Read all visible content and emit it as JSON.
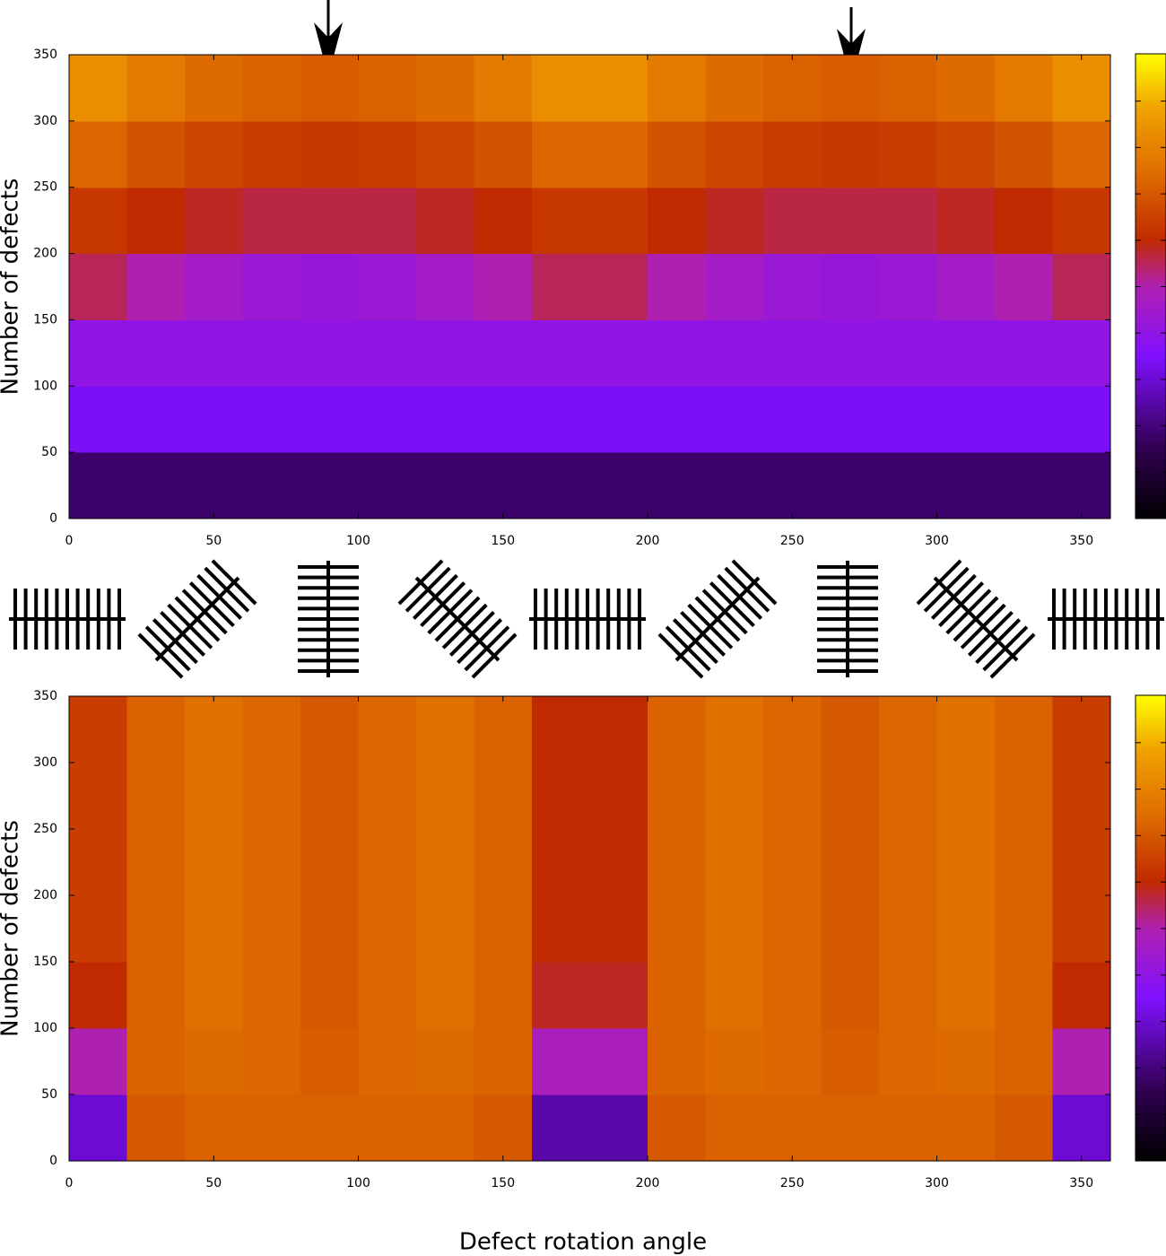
{
  "chart_data": [
    {
      "type": "heatmap",
      "ylabel": "Number of defects",
      "x": [
        10,
        30,
        50,
        70,
        90,
        110,
        130,
        150,
        170,
        190,
        210,
        230,
        250,
        270,
        290,
        310,
        330,
        350
      ],
      "y": [
        25,
        75,
        125,
        175,
        225,
        275,
        325
      ],
      "values": [
        [
          0.18,
          0.18,
          0.18,
          0.18,
          0.18,
          0.18,
          0.18,
          0.18,
          0.18,
          0.18,
          0.18,
          0.18,
          0.18,
          0.18,
          0.18,
          0.18,
          0.18,
          0.18
        ],
        [
          0.34,
          0.34,
          0.34,
          0.34,
          0.34,
          0.34,
          0.34,
          0.34,
          0.34,
          0.34,
          0.34,
          0.34,
          0.34,
          0.34,
          0.34,
          0.34,
          0.34,
          0.34
        ],
        [
          0.4,
          0.4,
          0.4,
          0.4,
          0.4,
          0.4,
          0.4,
          0.4,
          0.4,
          0.4,
          0.4,
          0.4,
          0.4,
          0.4,
          0.4,
          0.4,
          0.4,
          0.4
        ],
        [
          0.55,
          0.5,
          0.46,
          0.43,
          0.42,
          0.43,
          0.46,
          0.5,
          0.55,
          0.55,
          0.5,
          0.46,
          0.43,
          0.42,
          0.43,
          0.46,
          0.5,
          0.55
        ],
        [
          0.63,
          0.6,
          0.58,
          0.56,
          0.56,
          0.56,
          0.58,
          0.6,
          0.63,
          0.63,
          0.6,
          0.58,
          0.56,
          0.56,
          0.56,
          0.58,
          0.6,
          0.63
        ],
        [
          0.73,
          0.69,
          0.66,
          0.64,
          0.63,
          0.64,
          0.66,
          0.69,
          0.73,
          0.73,
          0.69,
          0.66,
          0.64,
          0.63,
          0.64,
          0.66,
          0.69,
          0.73
        ],
        [
          0.83,
          0.78,
          0.74,
          0.72,
          0.71,
          0.72,
          0.74,
          0.78,
          0.83,
          0.83,
          0.78,
          0.74,
          0.72,
          0.71,
          0.72,
          0.74,
          0.78,
          0.83
        ]
      ],
      "xlim": [
        0,
        360
      ],
      "ylim": [
        0,
        350
      ],
      "zlim": [
        0,
        1
      ],
      "xticks": [
        0,
        50,
        100,
        150,
        200,
        250,
        300,
        350
      ],
      "yticks": [
        0,
        50,
        100,
        150,
        200,
        250,
        300,
        350
      ],
      "colormap": [
        [
          0,
          "#000000"
        ],
        [
          0.15,
          "#300050"
        ],
        [
          0.35,
          "#8010ff"
        ],
        [
          0.5,
          "#b020b0"
        ],
        [
          0.6,
          "#c02a00"
        ],
        [
          0.75,
          "#e07000"
        ],
        [
          0.88,
          "#f0a000"
        ],
        [
          1,
          "#ffff00"
        ]
      ]
    },
    {
      "type": "heatmap",
      "ylabel": "Number of defects",
      "xlabel": "Defect rotation angle",
      "x": [
        10,
        30,
        50,
        70,
        90,
        110,
        130,
        150,
        170,
        190,
        210,
        230,
        250,
        270,
        290,
        310,
        330,
        350
      ],
      "y": [
        25,
        75,
        125,
        175,
        225,
        275,
        325
      ],
      "values": [
        [
          0.3,
          0.7,
          0.72,
          0.72,
          0.72,
          0.72,
          0.72,
          0.7,
          0.25,
          0.25,
          0.7,
          0.72,
          0.72,
          0.72,
          0.72,
          0.72,
          0.7,
          0.3
        ],
        [
          0.5,
          0.72,
          0.74,
          0.73,
          0.71,
          0.73,
          0.74,
          0.72,
          0.48,
          0.48,
          0.72,
          0.74,
          0.73,
          0.71,
          0.73,
          0.74,
          0.72,
          0.5
        ],
        [
          0.6,
          0.72,
          0.75,
          0.73,
          0.7,
          0.73,
          0.75,
          0.72,
          0.58,
          0.58,
          0.72,
          0.75,
          0.73,
          0.7,
          0.73,
          0.75,
          0.72,
          0.6
        ],
        [
          0.64,
          0.72,
          0.75,
          0.73,
          0.7,
          0.73,
          0.75,
          0.72,
          0.6,
          0.6,
          0.72,
          0.75,
          0.73,
          0.7,
          0.73,
          0.75,
          0.72,
          0.64
        ],
        [
          0.64,
          0.72,
          0.75,
          0.73,
          0.7,
          0.73,
          0.75,
          0.72,
          0.6,
          0.6,
          0.72,
          0.75,
          0.73,
          0.7,
          0.73,
          0.75,
          0.72,
          0.64
        ],
        [
          0.64,
          0.72,
          0.75,
          0.73,
          0.7,
          0.73,
          0.75,
          0.72,
          0.6,
          0.6,
          0.72,
          0.75,
          0.73,
          0.7,
          0.73,
          0.75,
          0.72,
          0.64
        ],
        [
          0.64,
          0.72,
          0.75,
          0.73,
          0.7,
          0.73,
          0.75,
          0.72,
          0.6,
          0.6,
          0.72,
          0.75,
          0.73,
          0.7,
          0.73,
          0.75,
          0.72,
          0.64
        ]
      ],
      "xlim": [
        0,
        360
      ],
      "ylim": [
        0,
        350
      ],
      "zlim": [
        0,
        1
      ],
      "xticks": [
        0,
        50,
        100,
        150,
        200,
        250,
        300,
        350
      ],
      "yticks": [
        0,
        50,
        100,
        150,
        200,
        250,
        300,
        350
      ],
      "colormap": [
        [
          0,
          "#000000"
        ],
        [
          0.15,
          "#300050"
        ],
        [
          0.35,
          "#8010ff"
        ],
        [
          0.5,
          "#b020b0"
        ],
        [
          0.6,
          "#c02a00"
        ],
        [
          0.75,
          "#e07000"
        ],
        [
          0.88,
          "#f0a000"
        ],
        [
          1,
          "#ffff00"
        ]
      ]
    }
  ]
}
